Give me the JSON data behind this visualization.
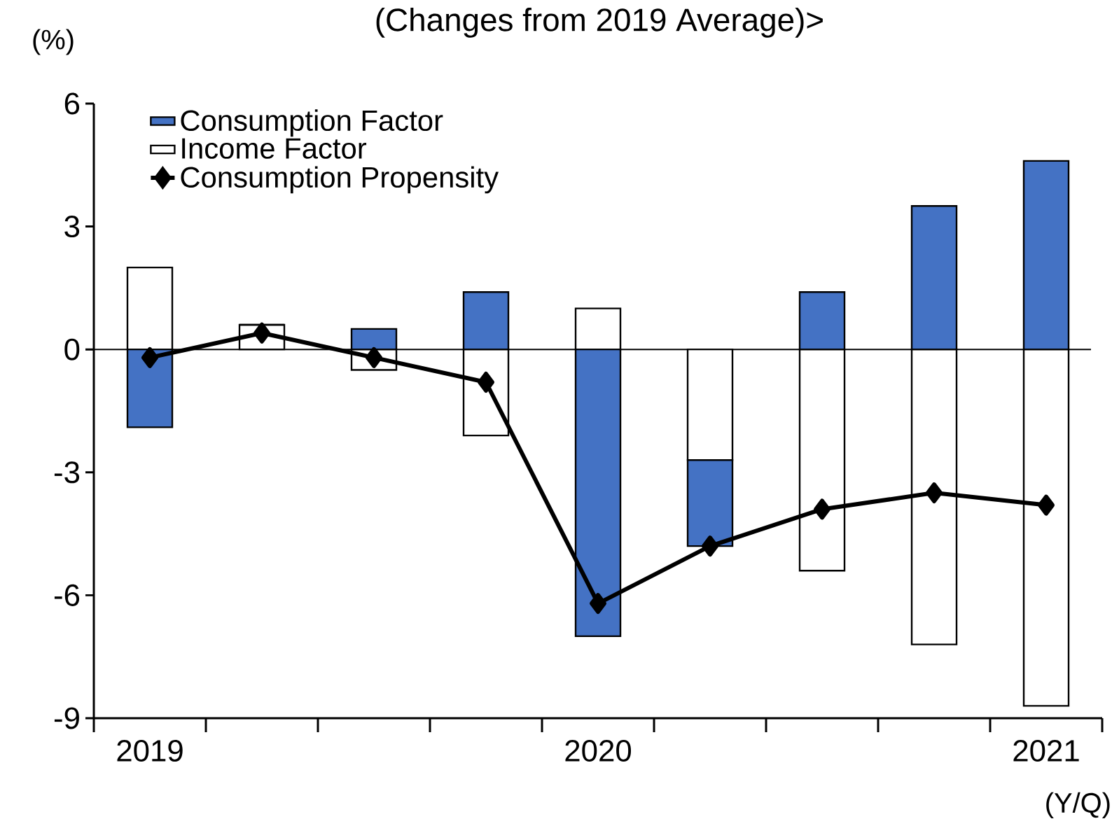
{
  "chart_data": {
    "type": "bar",
    "title": "(Changes from 2019 Average)>",
    "ylabel": "(%)",
    "categories": [
      "2019",
      null,
      null,
      null,
      "2020",
      null,
      null,
      null,
      "2021"
    ],
    "stacked": true,
    "series": [
      {
        "name": "Income Factor",
        "type": "bar",
        "color": "#ffffff",
        "values": [
          2.0,
          0.6,
          -0.5,
          -2.1,
          1.0,
          -2.7,
          -5.4,
          -7.2,
          -8.7
        ]
      },
      {
        "name": "Consumption Factor",
        "type": "bar",
        "color": "#4472c4",
        "values": [
          -1.9,
          0.0,
          0.5,
          1.4,
          -7.0,
          -2.1,
          1.4,
          3.5,
          4.6
        ]
      },
      {
        "name": "Consumption Propensity",
        "type": "line",
        "color": "#000000",
        "marker": "diamond",
        "line_style": "solid",
        "values": [
          -0.2,
          0.4,
          -0.2,
          -0.8,
          -6.2,
          -4.8,
          -3.9,
          -3.5,
          -3.8
        ]
      }
    ],
    "ylim": [
      -9,
      6
    ],
    "yticks": [
      -9,
      -6,
      -3,
      0,
      3,
      6
    ],
    "ref_lines": [
      {
        "axis": "y",
        "value": 0
      }
    ],
    "legend": "top left",
    "annotations": [
      "(Y/Q)"
    ]
  }
}
